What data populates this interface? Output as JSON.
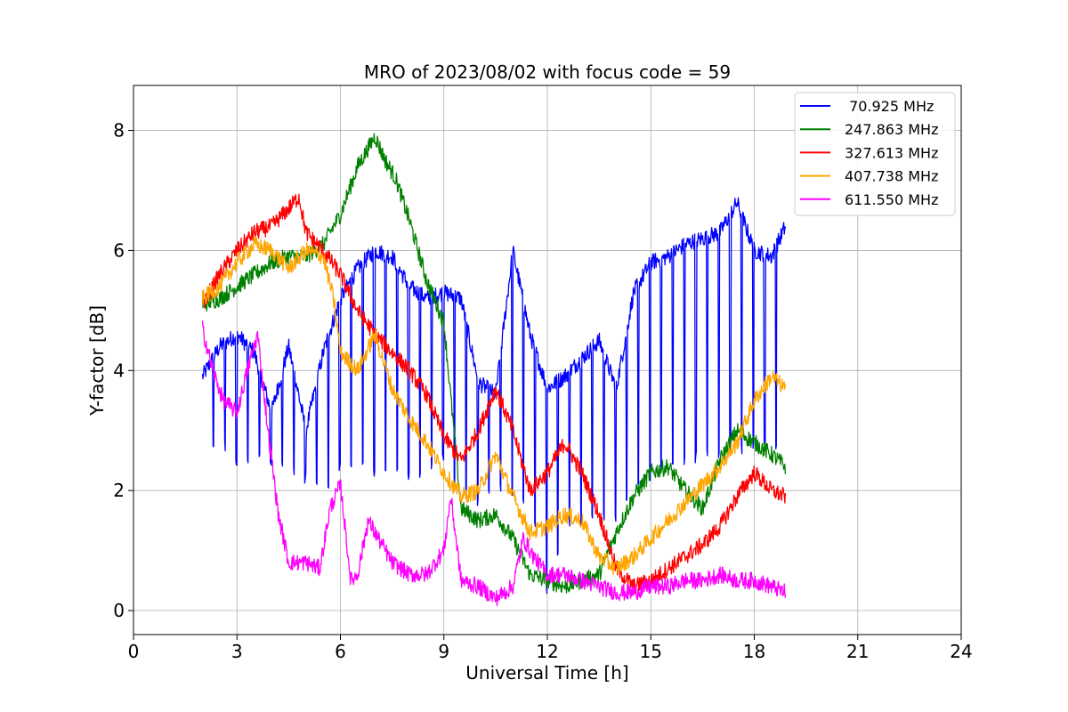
{
  "chart_data": {
    "type": "line",
    "title": "MRO of 2023/08/02 with focus code = 59",
    "xlabel": "Universal Time [h]",
    "ylabel": "Y-factor [dB]",
    "xlim": [
      0,
      24
    ],
    "ylim": [
      -0.4,
      8.75
    ],
    "xticks": [
      0,
      3,
      6,
      9,
      12,
      15,
      18,
      21,
      24
    ],
    "yticks": [
      0,
      2,
      4,
      6,
      8
    ],
    "grid": true,
    "legend_position": "top-right",
    "series": [
      {
        "name": " 70.925 MHz",
        "color": "#0000ff",
        "x": [
          2.0,
          2.5,
          3.0,
          3.5,
          4.0,
          4.5,
          5.0,
          5.5,
          6.0,
          6.5,
          7.0,
          7.5,
          8.0,
          8.5,
          9.0,
          9.5,
          10.0,
          10.5,
          11.0,
          11.5,
          12.0,
          12.5,
          13.0,
          13.5,
          14.0,
          14.5,
          15.0,
          15.5,
          16.0,
          16.5,
          17.0,
          17.5,
          18.0,
          18.5,
          18.9
        ],
        "y": [
          3.9,
          4.4,
          4.6,
          4.3,
          3.3,
          4.4,
          3.0,
          4.3,
          5.2,
          5.7,
          6.0,
          5.9,
          5.4,
          5.2,
          5.3,
          5.2,
          3.8,
          3.6,
          6.0,
          4.6,
          3.7,
          3.9,
          4.2,
          4.5,
          3.7,
          5.3,
          5.8,
          5.9,
          6.1,
          6.2,
          6.3,
          6.8,
          6.0,
          5.9,
          6.4
        ],
        "dips_to": [
          2.5,
          2.9,
          2.4,
          2.5,
          2.5,
          2.4,
          2.2,
          2.0,
          2.4,
          2.5,
          2.3,
          2.3,
          2.2,
          2.4,
          2.6,
          1.8,
          1.8,
          2.0,
          2.0,
          1.8,
          0.3,
          1.5,
          1.5,
          1.6,
          1.5,
          2.0,
          2.2,
          2.4,
          2.5,
          2.6,
          2.6,
          2.7,
          2.7,
          2.7,
          3.0
        ]
      },
      {
        "name": "247.863 MHz",
        "color": "#008000",
        "x": [
          2.0,
          2.5,
          3.0,
          3.5,
          4.0,
          4.5,
          5.0,
          5.5,
          6.0,
          6.5,
          7.0,
          7.3,
          7.6,
          8.0,
          8.5,
          9.0,
          9.5,
          10.0,
          10.5,
          11.0,
          11.5,
          12.0,
          12.5,
          13.0,
          13.5,
          14.0,
          14.5,
          15.0,
          15.5,
          16.0,
          16.5,
          17.0,
          17.5,
          18.0,
          18.5,
          18.9
        ],
        "y": [
          5.1,
          5.2,
          5.4,
          5.6,
          5.8,
          5.9,
          5.9,
          6.1,
          6.6,
          7.4,
          7.9,
          7.5,
          7.2,
          6.5,
          5.5,
          4.8,
          1.7,
          1.5,
          1.6,
          1.2,
          0.6,
          0.5,
          0.4,
          0.5,
          0.6,
          1.3,
          1.9,
          2.3,
          2.4,
          2.0,
          1.7,
          2.5,
          3.0,
          2.8,
          2.6,
          2.4
        ]
      },
      {
        "name": "327.613 MHz",
        "color": "#ff0000",
        "x": [
          2.0,
          2.5,
          3.0,
          3.5,
          4.0,
          4.5,
          4.8,
          5.0,
          5.5,
          6.0,
          6.5,
          7.0,
          7.5,
          8.0,
          8.5,
          9.0,
          9.5,
          10.0,
          10.5,
          11.0,
          11.5,
          12.0,
          12.5,
          13.0,
          13.5,
          14.0,
          14.5,
          15.0,
          15.5,
          16.0,
          16.5,
          17.0,
          17.5,
          18.0,
          18.5,
          18.9
        ],
        "y": [
          5.1,
          5.6,
          6.0,
          6.3,
          6.4,
          6.7,
          6.9,
          6.3,
          6.0,
          5.6,
          5.0,
          4.6,
          4.3,
          4.0,
          3.6,
          2.9,
          2.5,
          3.0,
          3.7,
          3.0,
          2.0,
          2.3,
          2.8,
          2.3,
          1.6,
          0.7,
          0.4,
          0.5,
          0.7,
          0.9,
          1.1,
          1.4,
          1.9,
          2.3,
          2.0,
          1.9
        ]
      },
      {
        "name": "407.738 MHz",
        "color": "#ffa500",
        "x": [
          2.0,
          2.5,
          3.0,
          3.5,
          4.0,
          4.5,
          5.0,
          5.5,
          5.8,
          6.0,
          6.5,
          7.0,
          7.5,
          8.0,
          8.5,
          9.0,
          9.5,
          10.0,
          10.5,
          11.0,
          11.5,
          12.0,
          12.5,
          13.0,
          13.5,
          14.0,
          14.5,
          15.0,
          15.5,
          16.0,
          16.5,
          17.0,
          17.5,
          18.0,
          18.5,
          18.9
        ],
        "y": [
          5.2,
          5.4,
          5.8,
          6.1,
          6.0,
          5.7,
          6.0,
          5.9,
          5.2,
          4.3,
          4.0,
          4.6,
          3.7,
          3.2,
          2.8,
          2.3,
          1.9,
          2.0,
          2.6,
          1.9,
          1.3,
          1.4,
          1.6,
          1.5,
          0.9,
          0.7,
          0.9,
          1.2,
          1.5,
          1.8,
          2.1,
          2.4,
          2.8,
          3.5,
          3.9,
          3.7
        ]
      },
      {
        "name": "611.550 MHz",
        "color": "#ff00ff",
        "x": [
          2.0,
          2.3,
          2.6,
          3.0,
          3.3,
          3.6,
          3.9,
          4.2,
          4.5,
          5.0,
          5.4,
          5.7,
          6.0,
          6.3,
          6.5,
          6.8,
          7.0,
          7.5,
          8.0,
          8.5,
          9.0,
          9.2,
          9.5,
          10.0,
          10.5,
          11.0,
          11.3,
          11.6,
          12.0,
          12.5,
          13.0,
          13.5,
          14.0,
          14.5,
          15.0,
          15.5,
          16.0,
          16.5,
          17.0,
          17.5,
          18.0,
          18.5,
          18.9
        ],
        "y": [
          4.7,
          4.0,
          3.5,
          3.3,
          4.0,
          4.6,
          3.0,
          1.6,
          0.8,
          0.8,
          0.7,
          1.7,
          2.1,
          0.5,
          0.6,
          1.5,
          1.3,
          0.8,
          0.6,
          0.6,
          1.0,
          1.9,
          0.5,
          0.4,
          0.2,
          0.4,
          1.2,
          0.9,
          0.6,
          0.6,
          0.5,
          0.4,
          0.3,
          0.3,
          0.4,
          0.4,
          0.5,
          0.5,
          0.6,
          0.5,
          0.5,
          0.4,
          0.3
        ]
      }
    ]
  }
}
